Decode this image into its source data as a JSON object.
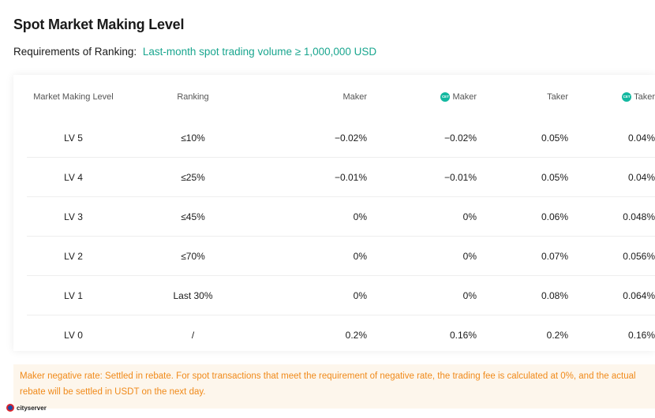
{
  "page": {
    "title": "Spot Market Making Level",
    "requirements_label": "Requirements of Ranking:",
    "requirements_value": "Last-month spot trading volume ≥ 1,000,000 USD"
  },
  "table": {
    "headers": {
      "level": "Market Making Level",
      "ranking": "Ranking",
      "maker": "Maker",
      "cet_maker": "Maker",
      "taker": "Taker",
      "cet_taker": "Taker"
    },
    "cet_icon_text": "CET",
    "rows": [
      {
        "level": "LV 5",
        "ranking": "≤10%",
        "maker": "−0.02%",
        "cet_maker": "−0.02%",
        "taker": "0.05%",
        "cet_taker": "0.04%"
      },
      {
        "level": "LV 4",
        "ranking": "≤25%",
        "maker": "−0.01%",
        "cet_maker": "−0.01%",
        "taker": "0.05%",
        "cet_taker": "0.04%"
      },
      {
        "level": "LV 3",
        "ranking": "≤45%",
        "maker": "0%",
        "cet_maker": "0%",
        "taker": "0.06%",
        "cet_taker": "0.048%"
      },
      {
        "level": "LV 2",
        "ranking": "≤70%",
        "maker": "0%",
        "cet_maker": "0%",
        "taker": "0.07%",
        "cet_taker": "0.056%"
      },
      {
        "level": "LV 1",
        "ranking": "Last 30%",
        "maker": "0%",
        "cet_maker": "0%",
        "taker": "0.08%",
        "cet_taker": "0.064%"
      },
      {
        "level": "LV 0",
        "ranking": "/",
        "maker": "0.2%",
        "cet_maker": "0.16%",
        "taker": "0.2%",
        "cet_taker": "0.16%"
      }
    ]
  },
  "note": {
    "text": "Maker negative rate: Settled in rebate. For spot transactions that meet the requirement of negative rate, the trading fee is calculated at 0%, and the actual rebate will be settled in USDT on the next day."
  },
  "watermark": {
    "text": "cityserver"
  },
  "colors": {
    "accent": "#1aa68f",
    "note_text": "#f08a1a",
    "note_bg": "#fdf6ec",
    "cet_icon": "#13b8a0"
  }
}
